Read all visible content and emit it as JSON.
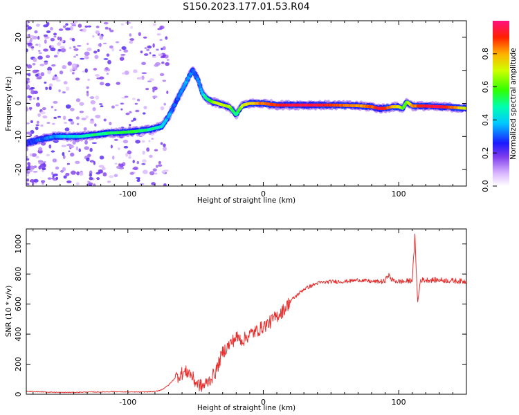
{
  "title": "S150.2023.177.01.53.R04",
  "colors": {
    "snr_line": "#e8312f",
    "spectrum_track": "#ff2020",
    "background_speckle": "#8a2be2"
  },
  "chart_data": [
    {
      "type": "heatmap",
      "xlabel": "Height of straight line (km)",
      "ylabel": "Frequency (Hz)",
      "xlim": [
        -175,
        150
      ],
      "ylim": [
        -25,
        25
      ],
      "x_ticks": [
        -100,
        0,
        100
      ],
      "y_ticks": [
        -20,
        -10,
        0,
        10,
        20
      ],
      "grid": false,
      "colorbar": {
        "label": "Normalized spectral amplitude",
        "range": [
          0,
          1
        ],
        "ticks": [
          "0.0",
          "0.2",
          "0.4",
          "0.6",
          "0.8"
        ]
      },
      "ridge": {
        "x": [
          -175,
          -165,
          -155,
          -145,
          -135,
          -125,
          -115,
          -105,
          -95,
          -85,
          -75,
          -70,
          -65,
          -60,
          -55,
          -52,
          -48,
          -45,
          -42,
          -38,
          -35,
          -30,
          -25,
          -22,
          -20,
          -18,
          -15,
          -10,
          -5,
          0,
          10,
          20,
          30,
          40,
          50,
          60,
          70,
          80,
          85,
          90,
          95,
          100,
          103,
          106,
          110,
          120,
          130,
          140,
          150
        ],
        "y": [
          -12,
          -11,
          -10,
          -10,
          -10,
          -9.5,
          -9,
          -8.8,
          -8.5,
          -8,
          -7,
          -4,
          0,
          4,
          8,
          10,
          7,
          3,
          1.5,
          0.5,
          0.2,
          -0.5,
          -1,
          -2.5,
          -3.5,
          -2,
          -0.5,
          0,
          0,
          0,
          -0.5,
          -0.5,
          -0.5,
          -0.5,
          -0.5,
          -0.6,
          -0.7,
          -1,
          -1.5,
          -1.5,
          -1,
          -1,
          -1.5,
          0.5,
          -0.8,
          -0.8,
          -1,
          -1.2,
          -1.5
        ],
        "amplitude": [
          0.25,
          0.3,
          0.35,
          0.4,
          0.45,
          0.5,
          0.5,
          0.55,
          0.55,
          0.5,
          0.45,
          0.35,
          0.3,
          0.35,
          0.35,
          0.3,
          0.35,
          0.4,
          0.5,
          0.6,
          0.7,
          0.7,
          0.65,
          0.55,
          0.5,
          0.55,
          0.7,
          0.75,
          0.8,
          0.85,
          0.9,
          0.95,
          0.95,
          0.95,
          0.9,
          0.85,
          0.8,
          0.85,
          0.95,
          0.9,
          0.8,
          0.75,
          0.6,
          0.6,
          0.8,
          0.95,
          0.95,
          0.85,
          0.7
        ]
      }
    },
    {
      "type": "line",
      "xlabel": "Height of straight line (km)",
      "ylabel": "SNR (10 * v/v)",
      "xlim": [
        -175,
        150
      ],
      "ylim": [
        0,
        1100
      ],
      "x_ticks": [
        -100,
        0,
        100
      ],
      "y_ticks": [
        0,
        200,
        400,
        600,
        800,
        1000
      ],
      "grid": false,
      "series": [
        {
          "x": [
            -175,
            -160,
            -150,
            -140,
            -130,
            -120,
            -110,
            -100,
            -90,
            -80,
            -75,
            -70,
            -65,
            -60,
            -55,
            -50,
            -45,
            -40,
            -35,
            -30,
            -25,
            -20,
            -15,
            -10,
            -5,
            0,
            5,
            10,
            15,
            20,
            25,
            30,
            40,
            50,
            60,
            70,
            80,
            90,
            92,
            95,
            100,
            105,
            110,
            112,
            114,
            116,
            120,
            130,
            140,
            150
          ],
          "y": [
            20,
            15,
            12,
            12,
            15,
            15,
            18,
            15,
            15,
            18,
            30,
            60,
            110,
            140,
            150,
            80,
            50,
            90,
            150,
            280,
            330,
            380,
            360,
            400,
            420,
            450,
            480,
            520,
            560,
            620,
            660,
            700,
            740,
            750,
            750,
            760,
            750,
            750,
            800,
            760,
            750,
            750,
            760,
            1050,
            600,
            760,
            760,
            760,
            755,
            750
          ]
        }
      ]
    }
  ]
}
